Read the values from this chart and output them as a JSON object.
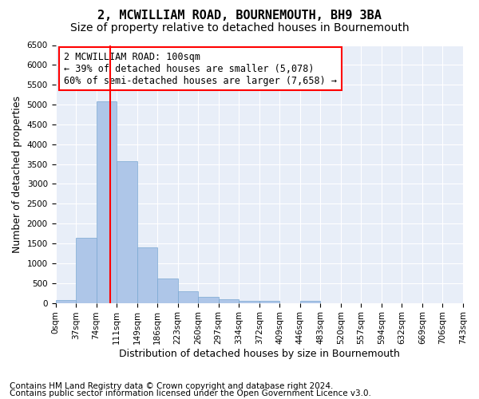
{
  "title": "2, MCWILLIAM ROAD, BOURNEMOUTH, BH9 3BA",
  "subtitle": "Size of property relative to detached houses in Bournemouth",
  "xlabel": "Distribution of detached houses by size in Bournemouth",
  "ylabel": "Number of detached properties",
  "bin_labels": [
    "0sqm",
    "37sqm",
    "74sqm",
    "111sqm",
    "149sqm",
    "186sqm",
    "223sqm",
    "260sqm",
    "297sqm",
    "334sqm",
    "372sqm",
    "409sqm",
    "446sqm",
    "483sqm",
    "520sqm",
    "557sqm",
    "594sqm",
    "632sqm",
    "669sqm",
    "706sqm",
    "743sqm"
  ],
  "bar_values": [
    75,
    1640,
    5080,
    3580,
    1400,
    620,
    300,
    155,
    90,
    50,
    60,
    0,
    60,
    0,
    0,
    0,
    0,
    0,
    0,
    0
  ],
  "bar_color": "#aec6e8",
  "bar_edge_color": "#7aa8d2",
  "property_line_x": 2.7,
  "property_line_color": "red",
  "ylim": [
    0,
    6500
  ],
  "yticks": [
    0,
    500,
    1000,
    1500,
    2000,
    2500,
    3000,
    3500,
    4000,
    4500,
    5000,
    5500,
    6000,
    6500
  ],
  "annotation_text": "2 MCWILLIAM ROAD: 100sqm\n← 39% of detached houses are smaller (5,078)\n60% of semi-detached houses are larger (7,658) →",
  "annotation_box_color": "white",
  "annotation_box_edgecolor": "red",
  "footer_line1": "Contains HM Land Registry data © Crown copyright and database right 2024.",
  "footer_line2": "Contains public sector information licensed under the Open Government Licence v3.0.",
  "bg_color": "#e8eef8",
  "grid_color": "white",
  "title_fontsize": 11,
  "subtitle_fontsize": 10,
  "axis_label_fontsize": 9,
  "tick_fontsize": 7.5,
  "annotation_fontsize": 8.5,
  "footer_fontsize": 7.5
}
